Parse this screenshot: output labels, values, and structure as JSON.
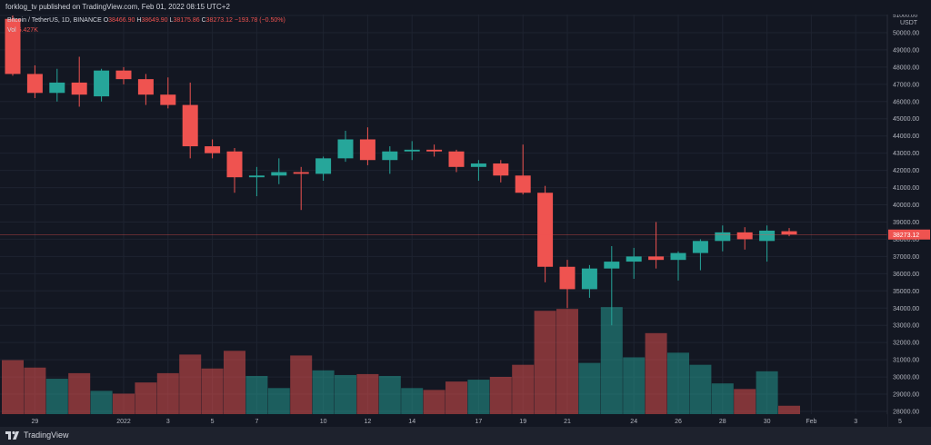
{
  "header": {
    "publisher": "forklog_tv published on TradingView.com, Feb 01, 2022 08:15 UTC+2"
  },
  "legend": {
    "symbol": "Bitcoin / TetherUS, 1D, BINANCE",
    "o_label": "O",
    "o_value": "38466.90",
    "h_label": "H",
    "h_value": "38649.90",
    "l_label": "L",
    "l_value": "38175.86",
    "c_label": "C",
    "c_value": "38273.12",
    "change": "−193.78 (−0.50%)",
    "vol_label": "Vol",
    "vol_value": "5.427K"
  },
  "footer": {
    "brand": "TradingView"
  },
  "colors": {
    "up": "#26a69a",
    "down": "#ef5350",
    "background": "#131722",
    "grid": "#1e2330",
    "text": "#b2b5be"
  },
  "chart_data": {
    "type": "candlestick",
    "title": "Bitcoin / TetherUS, 1D, BINANCE",
    "ylabel": "USDT",
    "ylim": [
      28000,
      51000
    ],
    "y_ticks": [
      "51000.00",
      "50000.00",
      "49000.00",
      "48000.00",
      "47000.00",
      "46000.00",
      "45000.00",
      "44000.00",
      "43000.00",
      "42000.00",
      "41000.00",
      "40000.00",
      "39000.00",
      "38000.00",
      "37000.00",
      "36000.00",
      "35000.00",
      "34000.00",
      "33000.00",
      "32000.00",
      "31000.00",
      "30000.00",
      "29000.00",
      "28000.00"
    ],
    "y_unit": "USDT",
    "last_price": "38273.12",
    "x_ticks": [
      {
        "label": "29",
        "day": 1
      },
      {
        "label": "2022",
        "day": 5
      },
      {
        "label": "3",
        "day": 7
      },
      {
        "label": "5",
        "day": 9
      },
      {
        "label": "7",
        "day": 11
      },
      {
        "label": "10",
        "day": 14
      },
      {
        "label": "12",
        "day": 16
      },
      {
        "label": "14",
        "day": 18
      },
      {
        "label": "17",
        "day": 21
      },
      {
        "label": "19",
        "day": 23
      },
      {
        "label": "21",
        "day": 25
      },
      {
        "label": "24",
        "day": 28
      },
      {
        "label": "26",
        "day": 30
      },
      {
        "label": "28",
        "day": 32
      },
      {
        "label": "30",
        "day": 34
      },
      {
        "label": "Feb",
        "day": 36
      },
      {
        "label": "3",
        "day": 38
      },
      {
        "label": "5",
        "day": 40
      }
    ],
    "candles": [
      {
        "o": 50800,
        "h": 51000,
        "l": 47500,
        "c": 47600,
        "v": 2.9
      },
      {
        "o": 47600,
        "h": 48100,
        "l": 46200,
        "c": 46500,
        "v": 2.5
      },
      {
        "o": 46500,
        "h": 47900,
        "l": 46000,
        "c": 47100,
        "v": 1.9
      },
      {
        "o": 47100,
        "h": 48600,
        "l": 45700,
        "c": 46400,
        "v": 2.2
      },
      {
        "o": 46300,
        "h": 47900,
        "l": 46000,
        "c": 47800,
        "v": 1.25
      },
      {
        "o": 47800,
        "h": 48000,
        "l": 47000,
        "c": 47300,
        "v": 1.1
      },
      {
        "o": 47300,
        "h": 47600,
        "l": 45800,
        "c": 46400,
        "v": 1.7
      },
      {
        "o": 46400,
        "h": 47400,
        "l": 45600,
        "c": 45800,
        "v": 2.2
      },
      {
        "o": 45800,
        "h": 47100,
        "l": 42700,
        "c": 43400,
        "v": 3.2
      },
      {
        "o": 43400,
        "h": 43800,
        "l": 42700,
        "c": 43000,
        "v": 2.45
      },
      {
        "o": 43100,
        "h": 43300,
        "l": 40700,
        "c": 41600,
        "v": 3.4
      },
      {
        "o": 41600,
        "h": 42200,
        "l": 40500,
        "c": 41700,
        "v": 2.05
      },
      {
        "o": 41700,
        "h": 42700,
        "l": 41200,
        "c": 41900,
        "v": 1.4
      },
      {
        "o": 41900,
        "h": 42200,
        "l": 39700,
        "c": 41800,
        "v": 3.15
      },
      {
        "o": 41800,
        "h": 42800,
        "l": 41400,
        "c": 42700,
        "v": 2.35
      },
      {
        "o": 42700,
        "h": 44300,
        "l": 42500,
        "c": 43800,
        "v": 2.1
      },
      {
        "o": 43800,
        "h": 44500,
        "l": 42300,
        "c": 42600,
        "v": 2.15
      },
      {
        "o": 42600,
        "h": 43400,
        "l": 41800,
        "c": 43100,
        "v": 2.05
      },
      {
        "o": 43100,
        "h": 43700,
        "l": 42600,
        "c": 43200,
        "v": 1.4
      },
      {
        "o": 43200,
        "h": 43500,
        "l": 42800,
        "c": 43100,
        "v": 1.3
      },
      {
        "o": 43100,
        "h": 43200,
        "l": 41900,
        "c": 42200,
        "v": 1.75
      },
      {
        "o": 42200,
        "h": 42600,
        "l": 41400,
        "c": 42400,
        "v": 1.85
      },
      {
        "o": 42400,
        "h": 42600,
        "l": 41300,
        "c": 41700,
        "v": 2.0
      },
      {
        "o": 41700,
        "h": 43500,
        "l": 40600,
        "c": 40700,
        "v": 2.65
      },
      {
        "o": 40700,
        "h": 41100,
        "l": 35500,
        "c": 36400,
        "v": 5.55
      },
      {
        "o": 36400,
        "h": 36800,
        "l": 34000,
        "c": 35100,
        "v": 5.65
      },
      {
        "o": 35100,
        "h": 36500,
        "l": 34600,
        "c": 36300,
        "v": 2.75
      },
      {
        "o": 36300,
        "h": 37600,
        "l": 33000,
        "c": 36700,
        "v": 5.75
      },
      {
        "o": 36700,
        "h": 37500,
        "l": 35700,
        "c": 37000,
        "v": 3.05
      },
      {
        "o": 37000,
        "h": 39000,
        "l": 36300,
        "c": 36800,
        "v": 4.35
      },
      {
        "o": 36800,
        "h": 37300,
        "l": 35600,
        "c": 37200,
        "v": 3.3
      },
      {
        "o": 37200,
        "h": 38000,
        "l": 36200,
        "c": 37900,
        "v": 2.65
      },
      {
        "o": 37900,
        "h": 38800,
        "l": 37300,
        "c": 38400,
        "v": 1.65
      },
      {
        "o": 38400,
        "h": 38700,
        "l": 37400,
        "c": 38000,
        "v": 1.35
      },
      {
        "o": 37900,
        "h": 38800,
        "l": 36700,
        "c": 38500,
        "v": 2.3
      },
      {
        "o": 38466.9,
        "h": 38649.9,
        "l": 38175.86,
        "c": 38273.12,
        "v": 0.45
      }
    ]
  }
}
